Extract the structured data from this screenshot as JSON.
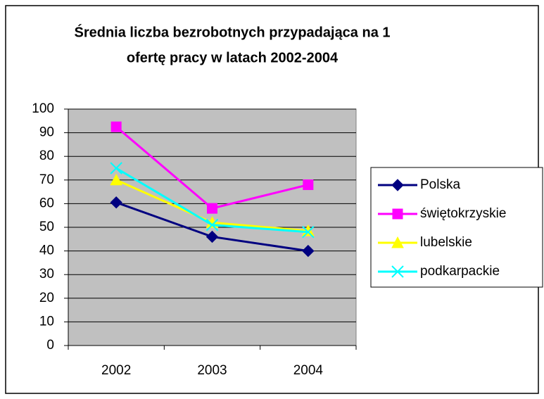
{
  "chart_data": {
    "type": "line",
    "title": [
      "Średnia liczba bezrobotnych przypadająca na 1",
      "ofertę pracy w latach 2002-2004"
    ],
    "categories": [
      "2002",
      "2003",
      "2004"
    ],
    "series": [
      {
        "name": "Polska",
        "color": "#000080",
        "marker": "diamond",
        "values": [
          60.5,
          46,
          40
        ]
      },
      {
        "name": "świętokrzyskie",
        "color": "#ff00ff",
        "marker": "square",
        "values": [
          92.5,
          58,
          68
        ]
      },
      {
        "name": "lubelskie",
        "color": "#ffff00",
        "marker": "triangle",
        "values": [
          70,
          52,
          48.5
        ]
      },
      {
        "name": "podkarpackie",
        "color": "#00ffff",
        "marker": "x",
        "values": [
          75,
          51,
          48
        ]
      }
    ],
    "ylim": [
      0,
      100
    ],
    "yticks": [
      0,
      10,
      20,
      30,
      40,
      50,
      60,
      70,
      80,
      90,
      100
    ],
    "grid": true,
    "legend": "right"
  }
}
